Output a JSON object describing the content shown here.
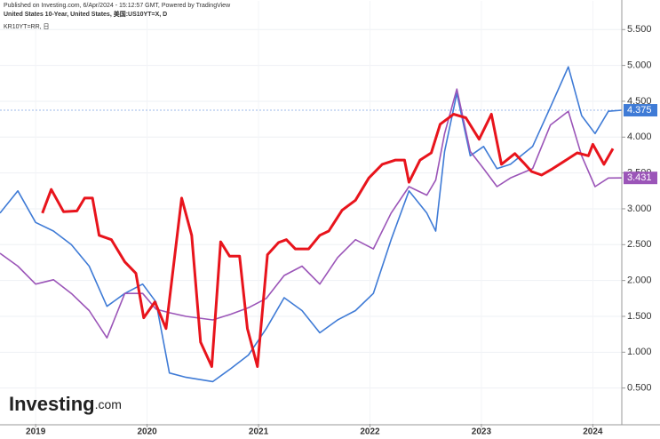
{
  "header": {
    "published": "Published on Investing.com, 6/Apr/2024 - 15:12:57 GMT, Powered by TradingView",
    "symbol1": "United States 10-Year, United States, 美国:US10YT=X, D",
    "symbol2": "KR10YT=RR, 日",
    "logo": "Investing",
    "logo_suffix": ".com"
  },
  "chart_data": {
    "type": "line",
    "x": [
      2018.68,
      2018.84,
      2019.0,
      2019.16,
      2019.32,
      2019.48,
      2019.64,
      2019.8,
      2019.96,
      2020.08,
      2020.2,
      2020.35,
      2020.59,
      2020.75,
      2020.91,
      2021.07,
      2021.23,
      2021.39,
      2021.55,
      2021.71,
      2021.87,
      2022.03,
      2022.19,
      2022.35,
      2022.51,
      2022.59,
      2022.67,
      2022.78,
      2022.9,
      2023.02,
      2023.14,
      2023.26,
      2023.46,
      2023.62,
      2023.78,
      2023.9,
      2024.02,
      2024.14,
      2024.26
    ],
    "series": [
      {
        "color": "#3f7bd6",
        "values": [
          2.94,
          3.25,
          2.81,
          2.69,
          2.5,
          2.2,
          1.64,
          1.82,
          1.95,
          1.7,
          0.71,
          0.65,
          0.59,
          0.77,
          0.96,
          1.33,
          1.76,
          1.58,
          1.27,
          1.45,
          1.58,
          1.82,
          2.57,
          3.25,
          2.94,
          2.69,
          3.8,
          4.61,
          3.74,
          3.87,
          3.56,
          3.62,
          3.87,
          4.42,
          4.98,
          4.3,
          4.05,
          4.36,
          4.375
        ]
      },
      {
        "color": "#9b55b8",
        "values": [
          2.38,
          2.2,
          1.95,
          2.01,
          1.82,
          1.58,
          1.2,
          1.82,
          1.82,
          1.6,
          1.55,
          1.5,
          1.45,
          1.53,
          1.62,
          1.75,
          2.07,
          2.2,
          1.95,
          2.32,
          2.57,
          2.44,
          2.94,
          3.31,
          3.19,
          3.4,
          4.05,
          4.67,
          3.8,
          3.56,
          3.31,
          3.43,
          3.56,
          4.17,
          4.36,
          3.74,
          3.31,
          3.43,
          3.431
        ]
      },
      {
        "color": "#e8141c",
        "x": [
          2019.06,
          2019.14,
          2019.25,
          2019.37,
          2019.44,
          2019.51,
          2019.57,
          2019.68,
          2019.8,
          2019.9,
          2019.97,
          2020.07,
          2020.17,
          2020.31,
          2020.4,
          2020.48,
          2020.58,
          2020.66,
          2020.74,
          2020.83,
          2020.9,
          2020.99,
          2021.08,
          2021.18,
          2021.25,
          2021.33,
          2021.45,
          2021.55,
          2021.63,
          2021.75,
          2021.87,
          2021.99,
          2022.11,
          2022.23,
          2022.31,
          2022.35,
          2022.45,
          2022.55,
          2022.63,
          2022.75,
          2022.86,
          2022.98,
          2023.09,
          2023.18,
          2023.3,
          2023.38,
          2023.45,
          2023.54,
          2023.64,
          2023.76,
          2023.86,
          2023.96,
          2024.0,
          2024.1,
          2024.18
        ],
        "values": [
          2.94,
          3.27,
          2.96,
          2.97,
          3.15,
          3.15,
          2.63,
          2.57,
          2.26,
          2.1,
          1.48,
          1.7,
          1.33,
          3.15,
          2.63,
          1.14,
          0.8,
          2.54,
          2.34,
          2.34,
          1.33,
          0.8,
          2.36,
          2.53,
          2.57,
          2.44,
          2.44,
          2.63,
          2.69,
          2.98,
          3.12,
          3.43,
          3.62,
          3.68,
          3.68,
          3.37,
          3.68,
          3.78,
          4.18,
          4.32,
          4.27,
          3.97,
          4.32,
          3.62,
          3.77,
          3.64,
          3.52,
          3.47,
          3.56,
          3.68,
          3.78,
          3.74,
          3.9,
          3.62,
          3.84
        ]
      }
    ],
    "xlim": [
      2018.68,
      2024.26
    ],
    "xticks": [
      2019,
      2020,
      2021,
      2022,
      2023,
      2024
    ],
    "ylim": [
      0,
      5.9
    ],
    "yticks": [
      {
        "value": 0.5,
        "label": "0.500"
      },
      {
        "value": 1.0,
        "label": "1.000"
      },
      {
        "value": 1.5,
        "label": "1.500"
      },
      {
        "value": 2.0,
        "label": "2.000"
      },
      {
        "value": 2.5,
        "label": "2.500"
      },
      {
        "value": 3.0,
        "label": "3.000"
      },
      {
        "value": 3.5,
        "label": "3.500"
      },
      {
        "value": 4.0,
        "label": "4.000"
      },
      {
        "value": 4.5,
        "label": "4.500"
      },
      {
        "value": 5.0,
        "label": "5.000"
      },
      {
        "value": 5.5,
        "label": "5.500"
      }
    ],
    "grid": true
  }
}
